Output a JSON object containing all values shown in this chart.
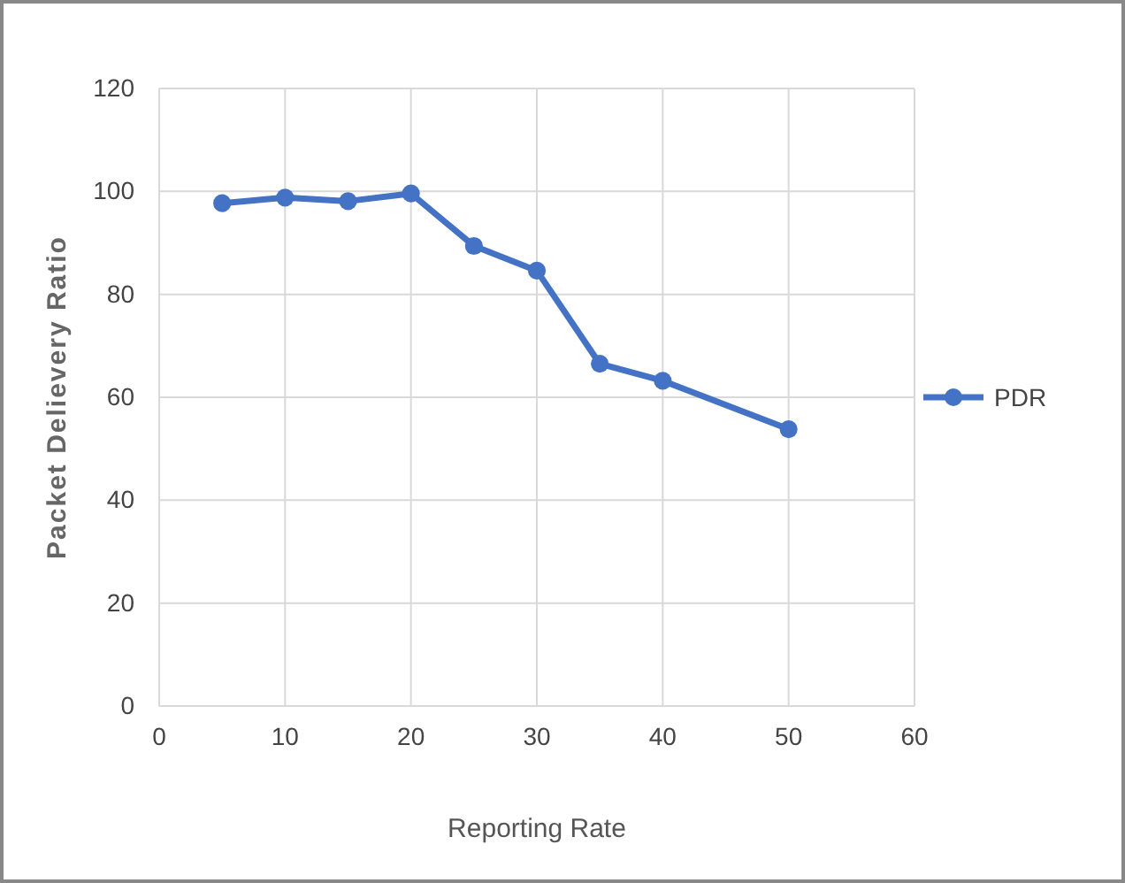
{
  "chart_data": {
    "type": "line",
    "xlabel": "Reporting Rate",
    "ylabel": "Packet Delievery Ratio",
    "x": [
      5,
      10,
      15,
      20,
      25,
      30,
      35,
      40,
      50
    ],
    "series": [
      {
        "name": "PDR",
        "color": "#4472c4",
        "values": [
          97.7,
          98.8,
          98.1,
          99.6,
          89.4,
          84.6,
          66.5,
          63.2,
          53.8
        ]
      }
    ],
    "xlim": [
      0,
      60
    ],
    "xticks": [
      0,
      10,
      20,
      30,
      40,
      50,
      60
    ],
    "ylim": [
      0,
      120
    ],
    "yticks": [
      0,
      20,
      40,
      60,
      80,
      100,
      120
    ],
    "grid": true,
    "legend": "right",
    "marker": "circle",
    "line_style": "solid"
  }
}
